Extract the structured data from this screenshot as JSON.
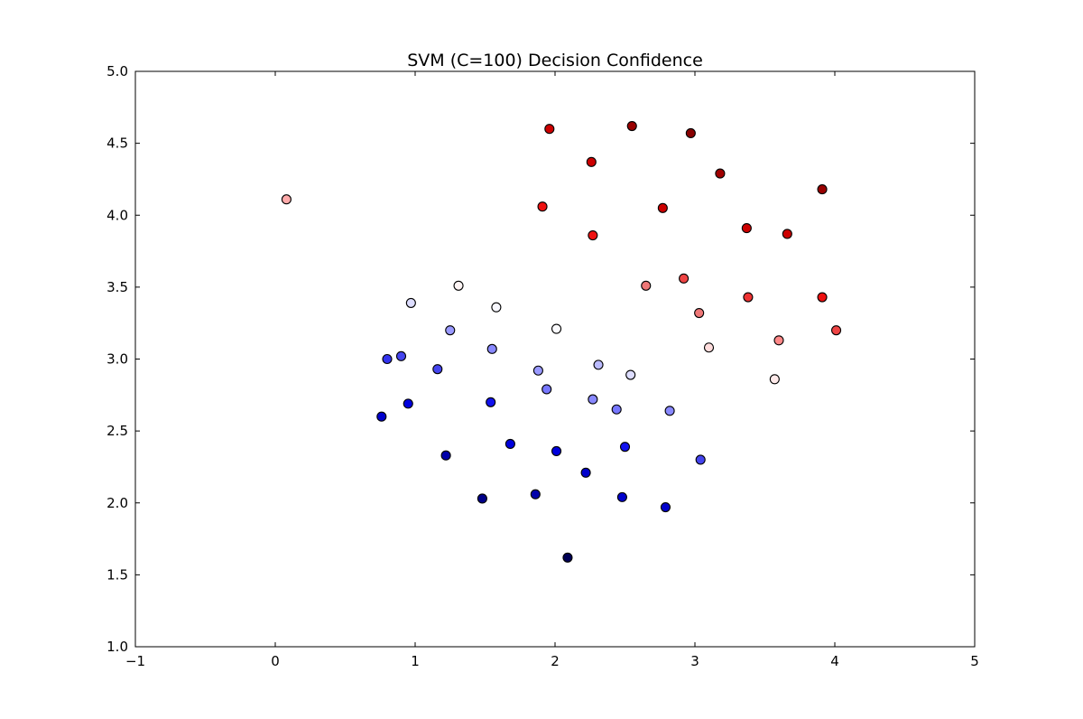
{
  "chart_data": {
    "type": "scatter",
    "title": "SVM (C=100) Decision Confidence",
    "xlabel": "",
    "ylabel": "",
    "xlim": [
      -1,
      5
    ],
    "ylim": [
      1.0,
      5.0
    ],
    "xticks": [
      -1,
      0,
      1,
      2,
      3,
      4,
      5
    ],
    "xtick_labels": [
      "−1",
      "0",
      "1",
      "2",
      "3",
      "4",
      "5"
    ],
    "yticks": [
      1.0,
      1.5,
      2.0,
      2.5,
      3.0,
      3.5,
      4.0,
      4.5,
      5.0
    ],
    "ytick_labels": [
      "1.0",
      "1.5",
      "2.0",
      "2.5",
      "3.0",
      "3.5",
      "4.0",
      "4.5",
      "5.0"
    ],
    "grid": false,
    "colormap": "seismic",
    "points": [
      {
        "x": 0.08,
        "y": 4.11,
        "color": "#ffaaaa"
      },
      {
        "x": 1.96,
        "y": 4.6,
        "color": "#cc0000"
      },
      {
        "x": 2.26,
        "y": 4.37,
        "color": "#cc0000"
      },
      {
        "x": 2.55,
        "y": 4.62,
        "color": "#990000"
      },
      {
        "x": 2.97,
        "y": 4.57,
        "color": "#880000"
      },
      {
        "x": 3.18,
        "y": 4.29,
        "color": "#a00000"
      },
      {
        "x": 3.91,
        "y": 4.18,
        "color": "#990000"
      },
      {
        "x": 1.91,
        "y": 4.06,
        "color": "#ee1111"
      },
      {
        "x": 2.77,
        "y": 4.05,
        "color": "#cc0000"
      },
      {
        "x": 2.27,
        "y": 3.86,
        "color": "#ee1111"
      },
      {
        "x": 3.37,
        "y": 3.91,
        "color": "#cc0000"
      },
      {
        "x": 3.66,
        "y": 3.87,
        "color": "#cc0000"
      },
      {
        "x": 2.65,
        "y": 3.51,
        "color": "#ee7777"
      },
      {
        "x": 2.92,
        "y": 3.56,
        "color": "#ee4444"
      },
      {
        "x": 3.38,
        "y": 3.43,
        "color": "#ee3333"
      },
      {
        "x": 3.91,
        "y": 3.43,
        "color": "#ee1111"
      },
      {
        "x": 3.03,
        "y": 3.32,
        "color": "#ee7777"
      },
      {
        "x": 4.01,
        "y": 3.2,
        "color": "#ee4444"
      },
      {
        "x": 3.6,
        "y": 3.13,
        "color": "#ff8888"
      },
      {
        "x": 3.1,
        "y": 3.08,
        "color": "#ffdddd"
      },
      {
        "x": 3.57,
        "y": 2.86,
        "color": "#ffeaea"
      },
      {
        "x": 1.31,
        "y": 3.51,
        "color": "#fff5f5"
      },
      {
        "x": 0.97,
        "y": 3.39,
        "color": "#ddddff"
      },
      {
        "x": 1.58,
        "y": 3.36,
        "color": "#f8f8ff"
      },
      {
        "x": 2.01,
        "y": 3.21,
        "color": "#fbfbff"
      },
      {
        "x": 1.25,
        "y": 3.2,
        "color": "#9999ff"
      },
      {
        "x": 1.55,
        "y": 3.07,
        "color": "#8888ff"
      },
      {
        "x": 0.8,
        "y": 3.0,
        "color": "#3333ee"
      },
      {
        "x": 0.9,
        "y": 3.02,
        "color": "#4444ee"
      },
      {
        "x": 1.16,
        "y": 2.93,
        "color": "#4444ee"
      },
      {
        "x": 1.88,
        "y": 2.92,
        "color": "#9999ff"
      },
      {
        "x": 2.31,
        "y": 2.96,
        "color": "#bbbbff"
      },
      {
        "x": 2.54,
        "y": 2.89,
        "color": "#ddddff"
      },
      {
        "x": 1.94,
        "y": 2.79,
        "color": "#7777ff"
      },
      {
        "x": 2.27,
        "y": 2.72,
        "color": "#8888ff"
      },
      {
        "x": 2.44,
        "y": 2.65,
        "color": "#7777ff"
      },
      {
        "x": 2.82,
        "y": 2.64,
        "color": "#8888ff"
      },
      {
        "x": 1.54,
        "y": 2.7,
        "color": "#1111ee"
      },
      {
        "x": 0.95,
        "y": 2.69,
        "color": "#0000dd"
      },
      {
        "x": 0.76,
        "y": 2.6,
        "color": "#0000cc"
      },
      {
        "x": 1.68,
        "y": 2.41,
        "color": "#0000dd"
      },
      {
        "x": 2.01,
        "y": 2.36,
        "color": "#0000dd"
      },
      {
        "x": 2.5,
        "y": 2.39,
        "color": "#1111ee"
      },
      {
        "x": 1.22,
        "y": 2.33,
        "color": "#0000aa"
      },
      {
        "x": 3.04,
        "y": 2.3,
        "color": "#4444ee"
      },
      {
        "x": 2.22,
        "y": 2.21,
        "color": "#0000cc"
      },
      {
        "x": 1.48,
        "y": 2.03,
        "color": "#000088"
      },
      {
        "x": 1.86,
        "y": 2.06,
        "color": "#0000aa"
      },
      {
        "x": 2.48,
        "y": 2.04,
        "color": "#0000cc"
      },
      {
        "x": 2.79,
        "y": 1.97,
        "color": "#0000cc"
      },
      {
        "x": 2.09,
        "y": 1.62,
        "color": "#000055"
      }
    ]
  }
}
